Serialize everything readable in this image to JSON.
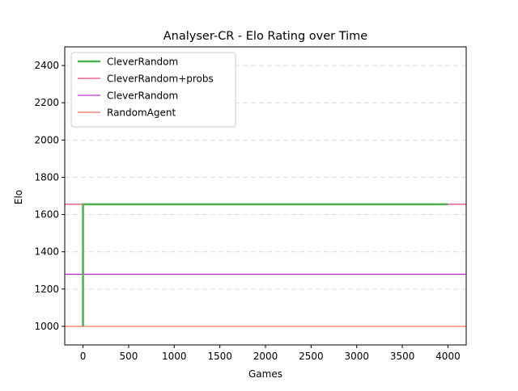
{
  "chart_data": {
    "type": "line",
    "title": "Analyser-CR - Elo Rating over Time",
    "xlabel": "Games",
    "ylabel": "Elo",
    "xlim": [
      -200,
      4200
    ],
    "ylim": [
      900,
      2500
    ],
    "xticks": [
      0,
      500,
      1000,
      1500,
      2000,
      2500,
      3000,
      3500,
      4000
    ],
    "yticks": [
      1000,
      1200,
      1400,
      1600,
      1800,
      2000,
      2200,
      2400
    ],
    "grid": "horizontal dashed",
    "legend_position": "upper left",
    "series": [
      {
        "name": "CleverRandom",
        "kind": "line",
        "color": "#4caf50",
        "points": [
          [
            0,
            1000
          ],
          [
            0,
            1655
          ],
          [
            4000,
            1655
          ]
        ]
      },
      {
        "name": "CleverRandom+probs",
        "kind": "hline",
        "color": "#e0115f",
        "y": 1655
      },
      {
        "name": "CleverRandom",
        "kind": "hline",
        "color": "#b000c8",
        "y": 1280
      },
      {
        "name": "RandomAgent",
        "kind": "hline",
        "color": "#f04e30",
        "y": 1000
      }
    ]
  }
}
